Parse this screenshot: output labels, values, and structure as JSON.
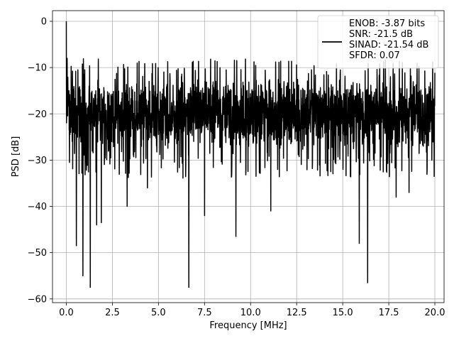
{
  "chart_data": {
    "type": "line",
    "title": "",
    "xlabel": "Frequency [MHz]",
    "ylabel": "PSD [dB]",
    "xlim": [
      -0.75,
      20.5
    ],
    "ylim": [
      -60.8,
      2.3
    ],
    "grid": true,
    "legend_position": "top-right",
    "x_ticks": [
      0.0,
      2.5,
      5.0,
      7.5,
      10.0,
      12.5,
      15.0,
      17.5,
      20.0
    ],
    "x_tick_labels": [
      "0.0",
      "2.5",
      "5.0",
      "7.5",
      "10.0",
      "12.5",
      "15.0",
      "17.5",
      "20.0"
    ],
    "y_ticks": [
      0,
      -10,
      -20,
      -30,
      -40,
      -50,
      -60
    ],
    "y_tick_labels": [
      "0",
      "−10",
      "−20",
      "−30",
      "−40",
      "−50",
      "−60"
    ],
    "series": [
      {
        "name": "",
        "color": "#000000",
        "legend_lines": [
          "ENOB: -3.87 bits",
          "SNR: -21.5 dB",
          "SINAD: -21.54 dB",
          "SFDR: 0.07"
        ],
        "x_range": [
          0.0,
          20.0
        ],
        "noise_floor_db": [
          -28,
          -12
        ],
        "typical_db": -20,
        "spikes": [
          {
            "x": 0.0,
            "y": 0.0
          },
          {
            "x": 0.05,
            "y": -8
          },
          {
            "x": 0.1,
            "y": -15
          },
          {
            "x": 0.55,
            "y": -48.5
          },
          {
            "x": 0.9,
            "y": -55
          },
          {
            "x": 1.3,
            "y": -57.5
          },
          {
            "x": 1.65,
            "y": -44
          },
          {
            "x": 1.9,
            "y": -43.5
          },
          {
            "x": 3.3,
            "y": -40
          },
          {
            "x": 4.4,
            "y": -36
          },
          {
            "x": 6.65,
            "y": -57.5
          },
          {
            "x": 7.5,
            "y": -42
          },
          {
            "x": 9.2,
            "y": -46.5
          },
          {
            "x": 11.1,
            "y": -41
          },
          {
            "x": 15.9,
            "y": -48
          },
          {
            "x": 16.35,
            "y": -56.5
          },
          {
            "x": 17.9,
            "y": -38
          },
          {
            "x": 18.6,
            "y": -37
          }
        ]
      }
    ]
  }
}
